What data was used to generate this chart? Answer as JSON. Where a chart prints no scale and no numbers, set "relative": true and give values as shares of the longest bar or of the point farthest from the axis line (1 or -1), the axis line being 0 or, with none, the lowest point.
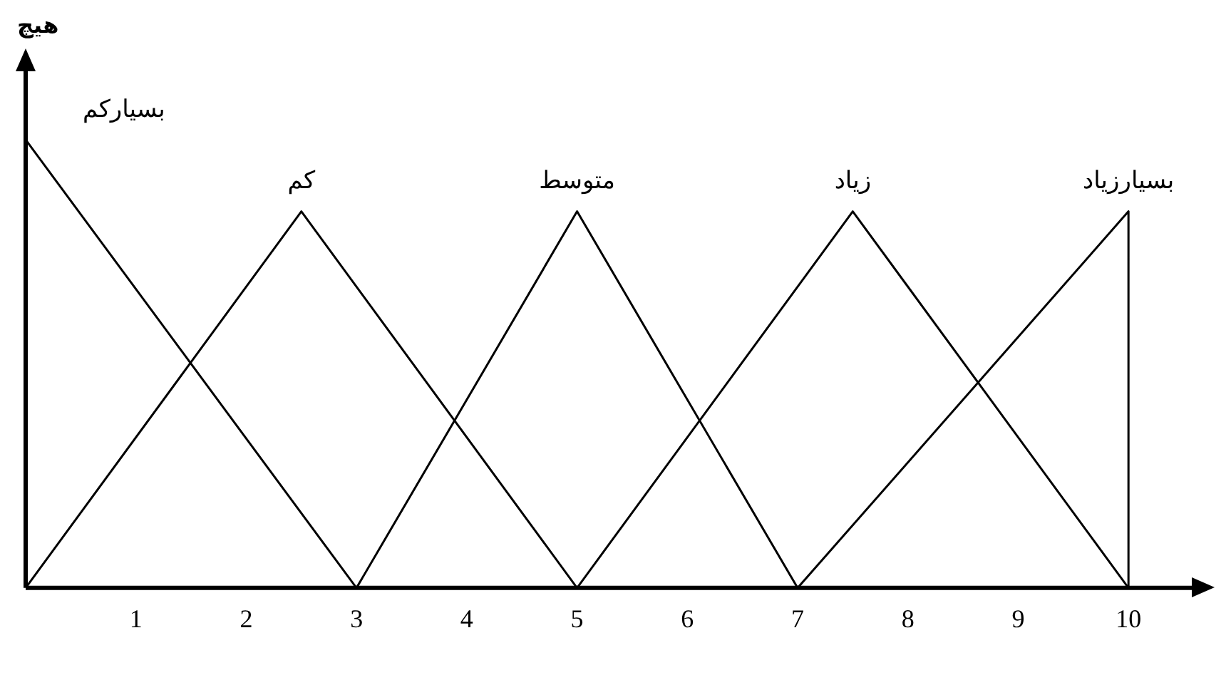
{
  "chart_data": {
    "type": "line",
    "ylabel": "هیچ",
    "relative": true,
    "xlim": [
      0,
      10.6
    ],
    "xticks": [
      1,
      2,
      3,
      4,
      5,
      6,
      7,
      8,
      9,
      10
    ],
    "grid": false,
    "legend": false,
    "marker": "none",
    "line_style": "solid",
    "tick_labels": "x",
    "series": [
      {
        "name": "بسیارکم",
        "color": "#000000",
        "x": [
          0,
          0,
          3
        ],
        "values": [
          0,
          1,
          0
        ]
      },
      {
        "name": "کم",
        "color": "#000000",
        "x": [
          0,
          2.5,
          5
        ],
        "values": [
          0,
          0.84,
          0
        ]
      },
      {
        "name": "متوسط",
        "color": "#000000",
        "x": [
          3,
          5,
          7
        ],
        "values": [
          0,
          0.84,
          0
        ]
      },
      {
        "name": "زیاد",
        "color": "#000000",
        "x": [
          5,
          7.5,
          10
        ],
        "values": [
          0,
          0.84,
          0
        ]
      },
      {
        "name": "بسیارزیاد",
        "color": "#000000",
        "x": [
          7,
          10,
          10
        ],
        "values": [
          0,
          0.84,
          0
        ]
      }
    ]
  }
}
